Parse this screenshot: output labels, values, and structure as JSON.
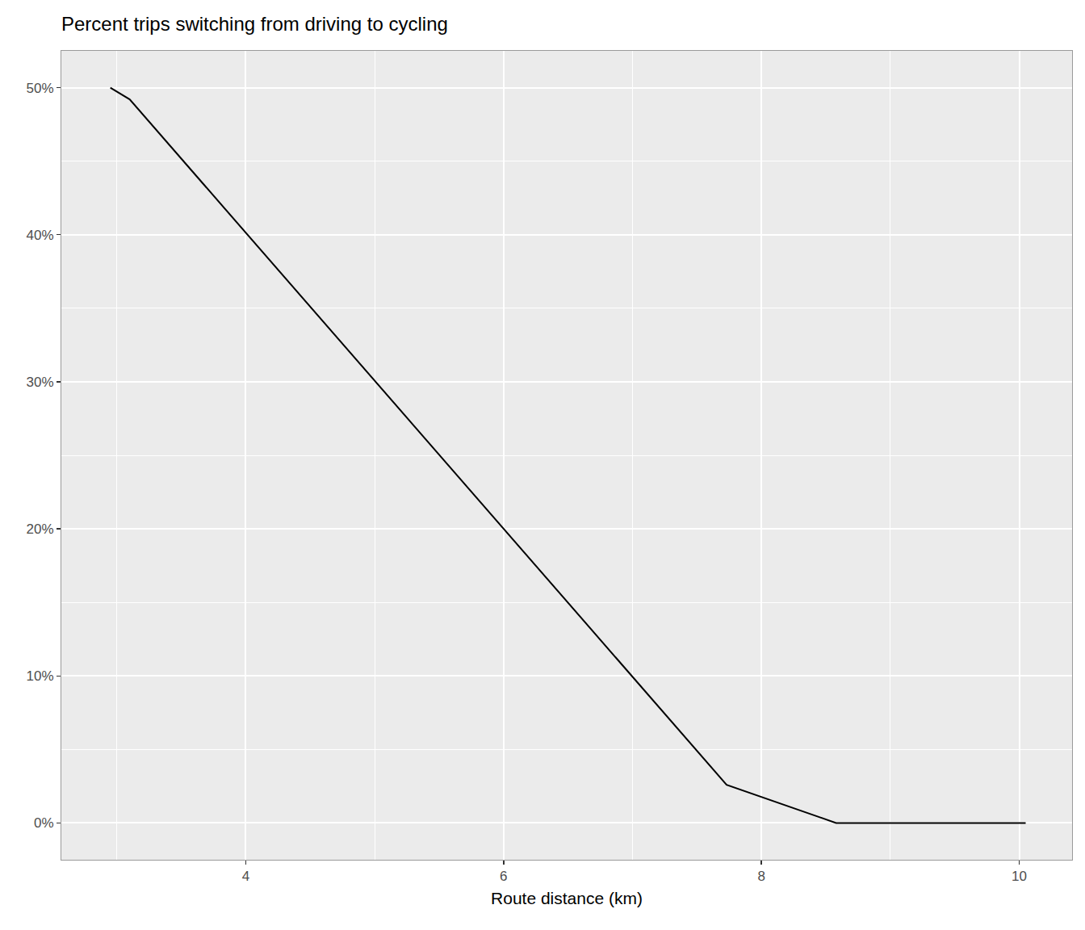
{
  "chart_data": {
    "type": "line",
    "title": "Percent trips switching from driving to cycling",
    "x_label": "Route distance (km)",
    "x": [
      2.95,
      3.1,
      7.73,
      8.58,
      10.05
    ],
    "values": [
      50,
      49.2,
      2.6,
      0,
      0
    ],
    "color": "#000000",
    "xlim": [
      2.57,
      10.41
    ],
    "ylim": [
      -2.5,
      52.5
    ],
    "xticks": [
      4,
      6,
      8,
      10
    ],
    "yticks": [
      {
        "value": 0,
        "label": "0%"
      },
      {
        "value": 10,
        "label": "10%"
      },
      {
        "value": 20,
        "label": "20%"
      },
      {
        "value": 30,
        "label": "30%"
      },
      {
        "value": 40,
        "label": "40%"
      },
      {
        "value": 50,
        "label": "50%"
      }
    ],
    "grid": true
  }
}
